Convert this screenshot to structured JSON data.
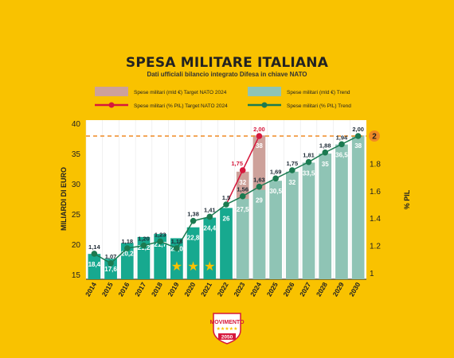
{
  "header": {
    "title": "SPESA MILITARE ITALIANA",
    "subtitle": "Dati ufficiali bilancio integrato Difesa in chiave NATO"
  },
  "legend": {
    "items": [
      {
        "label": "Spese militari (mld €) Target NATO 2024",
        "kind": "bar",
        "color": "#CDA19A"
      },
      {
        "label": "Spese militari (mld €) Trend",
        "kind": "bar",
        "color": "#8FC4B5"
      },
      {
        "label": "Spese militari (% PIL) Target NATO 2024",
        "kind": "line",
        "color": "#D6183C"
      },
      {
        "label": "Spese militari (% PIL) Trend",
        "kind": "line",
        "color": "#1B7A50"
      }
    ]
  },
  "logo": {
    "text": "MOVIMENTO",
    "number": "2050"
  },
  "chart_data": {
    "type": "bar",
    "xlabel": "",
    "ylabel": "MILIARDI DI EURO",
    "y2label": "% PIL",
    "categories": [
      "2014",
      "2015",
      "2016",
      "2017",
      "2018",
      "2019",
      "2020",
      "2021",
      "2022",
      "2023",
      "2024",
      "2025",
      "2026",
      "2027",
      "2028",
      "2029",
      "2030"
    ],
    "ylim": [
      15,
      40
    ],
    "yticks": [
      15,
      20,
      25,
      30,
      35,
      40
    ],
    "y2lim": [
      1.0,
      2.0
    ],
    "y2ticks": [
      "1",
      "1.2",
      "1.4",
      "1.6",
      "1.8",
      "2"
    ],
    "bars_actual": {
      "values": [
        18.4,
        17.6,
        20.2,
        21.2,
        21.7,
        21.0,
        22.8,
        24.4,
        26,
        null,
        null,
        null,
        null,
        null,
        null,
        null,
        null
      ],
      "labels": [
        "18,4",
        "17,6",
        "20,2",
        "21,2",
        "21,7",
        "21,0",
        "22,8",
        "24,4",
        "26",
        "",
        "",
        "",
        "",
        "",
        "",
        "",
        ""
      ],
      "color": "#17A98F"
    },
    "bars_trend": {
      "values": [
        null,
        null,
        null,
        null,
        null,
        null,
        null,
        null,
        null,
        27.5,
        29,
        30.5,
        32,
        33.5,
        35,
        36.5,
        38
      ],
      "labels": [
        "",
        "",
        "",
        "",
        "",
        "",
        "",
        "",
        "",
        "27,5",
        "29",
        "30,5",
        "32",
        "33,5",
        "35",
        "36,5",
        "38"
      ],
      "color": "#8FC4B5"
    },
    "bars_target": {
      "values": [
        null,
        null,
        null,
        null,
        null,
        null,
        null,
        null,
        null,
        32,
        38,
        null,
        null,
        null,
        null,
        null,
        null
      ],
      "labels": [
        "",
        "",
        "",
        "",
        "",
        "",
        "",
        "",
        "",
        "32",
        "38",
        "",
        "",
        "",
        "",
        "",
        ""
      ],
      "color": "#CDA19A"
    },
    "pil_trend": {
      "values": [
        1.14,
        1.07,
        1.18,
        1.2,
        1.23,
        1.18,
        1.38,
        1.41,
        1.5,
        1.56,
        1.63,
        1.69,
        1.75,
        1.81,
        1.88,
        1.94,
        2.0
      ],
      "labels": [
        "1,14",
        "1,07",
        "1,18",
        "1,20",
        "1,23",
        "1,18",
        "1,38",
        "1,41",
        "1,5",
        "1,56",
        "1,63",
        "1,69",
        "1,75",
        "1,81",
        "1,88",
        "1,94",
        "2,00"
      ],
      "color": "#1B7A50"
    },
    "pil_target": {
      "x": [
        "2022",
        "2023",
        "2024"
      ],
      "values": [
        1.5,
        1.75,
        2.0
      ],
      "labels": [
        "",
        "1,75",
        "2,00"
      ],
      "color": "#D6183C"
    },
    "target_line": {
      "value": 2,
      "label": "2",
      "color": "#F08A24"
    },
    "stars": [
      "2019",
      "2020",
      "2021"
    ]
  }
}
